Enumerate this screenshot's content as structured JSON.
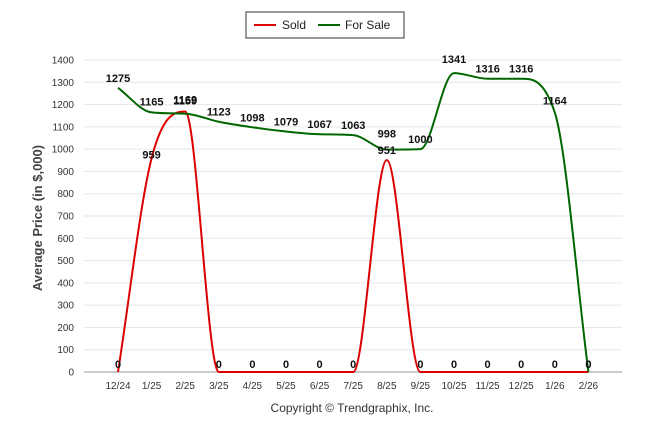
{
  "chart_data": {
    "type": "line",
    "ylabel": "Average Price (in $,000)",
    "xlabel": "",
    "categories": [
      "12/24",
      "1/25",
      "2/25",
      "3/25",
      "4/25",
      "5/25",
      "6/25",
      "7/25",
      "8/25",
      "9/25",
      "10/25",
      "11/25",
      "12/25",
      "1/26",
      "2/26"
    ],
    "ylim": [
      0,
      1400
    ],
    "yticks": [
      0,
      100,
      200,
      300,
      400,
      500,
      600,
      700,
      800,
      900,
      1000,
      1100,
      1200,
      1300,
      1400
    ],
    "grid": true,
    "legend_position": "top-center",
    "series": [
      {
        "name": "Sold",
        "color": "#dd0000",
        "values": [
          0,
          959,
          1169,
          0,
          0,
          0,
          0,
          0,
          951,
          0,
          0,
          0,
          0,
          0,
          0
        ]
      },
      {
        "name": "For Sale",
        "color": "#006600",
        "values": [
          1275,
          1165,
          1159,
          1123,
          1098,
          1079,
          1067,
          1063,
          998,
          1000,
          1341,
          1316,
          1316,
          1164,
          0
        ]
      }
    ],
    "credit": "Copyright © Trendgraphix, Inc."
  }
}
